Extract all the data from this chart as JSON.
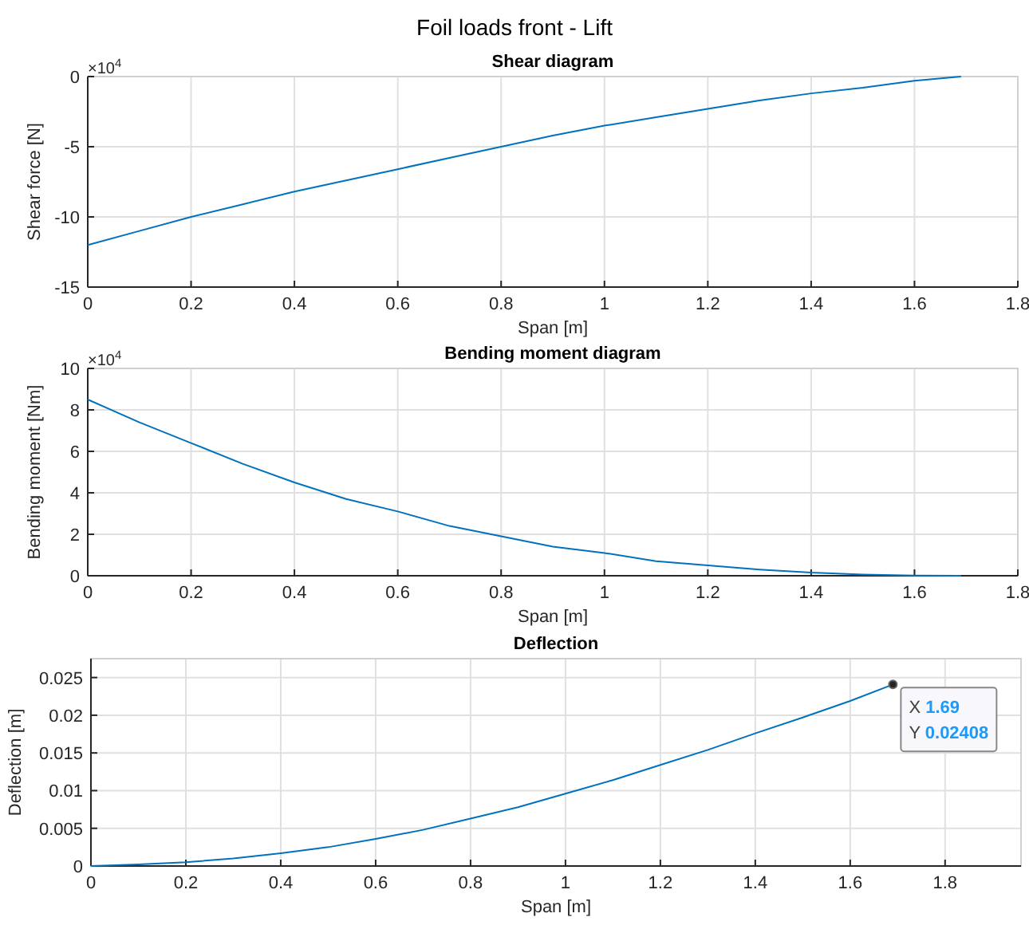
{
  "chart_data": [
    {
      "type": "line",
      "title": "Foil loads front - Lift",
      "subtitle": "Shear diagram",
      "xlabel": "Span [m]",
      "ylabel": "Shear force [N]",
      "annotations": [
        "×10$^{4}$"
      ],
      "x": [
        0,
        0.1,
        0.2,
        0.3,
        0.4,
        0.5,
        0.6,
        0.7,
        0.8,
        0.9,
        1.0,
        1.1,
        1.2,
        1.3,
        1.4,
        1.5,
        1.6,
        1.69
      ],
      "series": [
        {
          "color": "#0072bd",
          "values": [
            -12,
            -11,
            -10,
            -9.1,
            -8.2,
            -7.4,
            -6.6,
            -5.8,
            -5,
            -4.2,
            -3.5,
            -2.9,
            -2.3,
            -1.7,
            -1.2,
            -0.8,
            -0.3,
            0
          ]
        }
      ],
      "xlim": [
        0,
        1.8
      ],
      "xticks": [
        0,
        0.2,
        0.4,
        0.6,
        0.8,
        1,
        1.2,
        1.4,
        1.6,
        1.8
      ],
      "ylim": [
        -15,
        0
      ],
      "yticks": [
        -15,
        -10,
        -5,
        0
      ],
      "grid": true,
      "marker": "none",
      "line_style": "solid"
    },
    {
      "type": "line",
      "title": "Bending moment diagram",
      "xlabel": "Span [m]",
      "ylabel": "Bending moment [Nm]",
      "annotations": [
        "×10$^{4}$"
      ],
      "x": [
        0,
        0.1,
        0.2,
        0.3,
        0.4,
        0.5,
        0.6,
        0.7,
        0.8,
        0.9,
        1.0,
        1.1,
        1.2,
        1.3,
        1.4,
        1.5,
        1.6,
        1.69
      ],
      "series": [
        {
          "color": "#0072bd",
          "values": [
            8.5,
            7.4,
            6.4,
            5.4,
            4.5,
            3.7,
            3.1,
            2.4,
            1.9,
            1.4,
            1.1,
            0.7,
            0.5,
            0.3,
            0.15,
            0.06,
            0.01,
            0
          ]
        }
      ],
      "xlim": [
        0,
        1.8
      ],
      "xticks": [
        0,
        0.2,
        0.4,
        0.6,
        0.8,
        1,
        1.2,
        1.4,
        1.6,
        1.8
      ],
      "ylim": [
        0,
        10
      ],
      "yticks": [
        0,
        2,
        4,
        6,
        8,
        10
      ],
      "grid": true,
      "marker": "none",
      "line_style": "solid"
    },
    {
      "type": "line",
      "title": "Deflection",
      "xlabel": "Span [m]",
      "ylabel": "Deflection [m]",
      "annotations": [
        {
          "text": "X 1.69\nY 0.02408",
          "x": 1.69,
          "y": 0.02408
        }
      ],
      "x": [
        0,
        0.1,
        0.2,
        0.3,
        0.4,
        0.5,
        0.6,
        0.7,
        0.8,
        0.9,
        1.0,
        1.1,
        1.2,
        1.3,
        1.4,
        1.5,
        1.6,
        1.69
      ],
      "series": [
        {
          "color": "#0072bd",
          "values": [
            0,
            0.0002,
            0.0005,
            0.001,
            0.0017,
            0.0025,
            0.0036,
            0.0048,
            0.0063,
            0.0078,
            0.0096,
            0.0114,
            0.0134,
            0.0154,
            0.0176,
            0.0197,
            0.0219,
            0.02408
          ]
        }
      ],
      "xlim": [
        0,
        1.96
      ],
      "xticks": [
        0,
        0.2,
        0.4,
        0.6,
        0.8,
        1,
        1.2,
        1.4,
        1.6,
        1.8
      ],
      "ylim": [
        0,
        0.0275
      ],
      "yticks": [
        0,
        0.005,
        0.01,
        0.015,
        0.02,
        0.025
      ],
      "grid": true,
      "marker": "none",
      "line_style": "solid"
    }
  ]
}
